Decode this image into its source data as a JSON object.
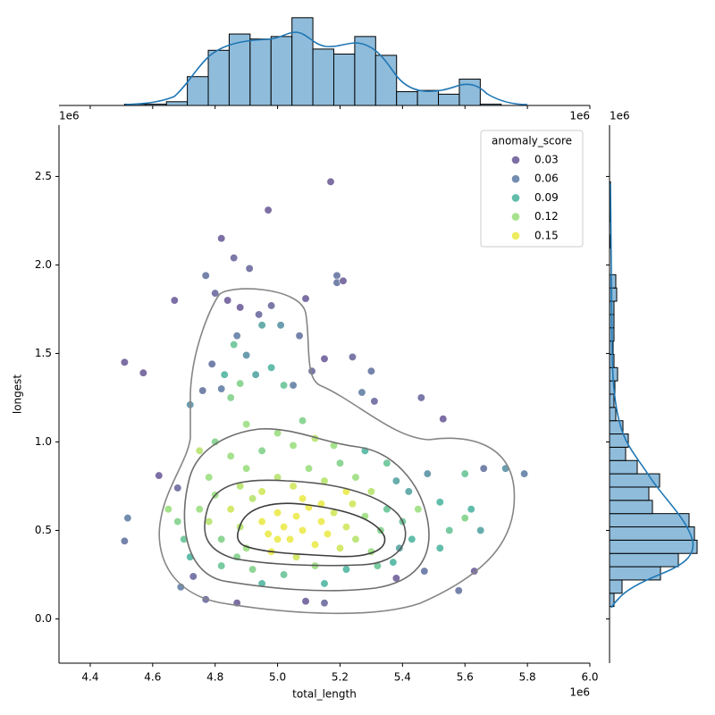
{
  "chart_data": {
    "type": "scatter",
    "x_label": "total_length",
    "y_label": "longest",
    "x_offset_label": "1e6",
    "y_offset_label": "1e6",
    "xlim": [
      4.3,
      6.0
    ],
    "ylim": [
      -0.25,
      2.79
    ],
    "xticks": [
      4.4,
      4.6,
      4.8,
      {
        "value": 5.0,
        "label": "5.0"
      },
      5.2,
      5.4,
      5.6,
      5.8,
      {
        "value": 6.0,
        "label": "6.0"
      }
    ],
    "yticks": [
      {
        "value": 0.0,
        "label": "0.0"
      },
      0.5,
      {
        "value": 1.0,
        "label": "1.0"
      },
      1.5,
      {
        "value": 2.0,
        "label": "2.0"
      },
      2.5
    ],
    "legend": {
      "title": "anomaly_score",
      "corner": "upper right",
      "entries": [
        {
          "value": 0.03,
          "color": "#46327e"
        },
        {
          "value": 0.06,
          "color": "#365c8d"
        },
        {
          "value": 0.09,
          "color": "#1fa187"
        },
        {
          "value": 0.12,
          "color": "#80d65c"
        },
        {
          "value": 0.15,
          "color": "#e5e419"
        }
      ]
    },
    "points": [
      [
        5.17,
        2.47,
        0.03
      ],
      [
        4.97,
        2.31,
        0.03
      ],
      [
        4.82,
        2.15,
        0.03
      ],
      [
        4.86,
        2.04,
        0.04
      ],
      [
        4.91,
        1.98,
        0.04
      ],
      [
        5.19,
        1.94,
        0.05
      ],
      [
        5.19,
        1.9,
        0.05
      ],
      [
        5.21,
        1.91,
        0.03
      ],
      [
        4.51,
        1.45,
        0.03
      ],
      [
        4.57,
        1.39,
        0.03
      ],
      [
        4.67,
        1.8,
        0.03
      ],
      [
        4.8,
        1.84,
        0.04
      ],
      [
        4.84,
        1.8,
        0.03
      ],
      [
        5.09,
        1.81,
        0.03
      ],
      [
        4.77,
        1.94,
        0.05
      ],
      [
        4.88,
        1.76,
        0.03
      ],
      [
        4.94,
        1.72,
        0.04
      ],
      [
        4.98,
        1.77,
        0.04
      ],
      [
        5.24,
        1.48,
        0.04
      ],
      [
        5.15,
        1.47,
        0.03
      ],
      [
        5.11,
        1.4,
        0.04
      ],
      [
        5.3,
        1.4,
        0.05
      ],
      [
        5.07,
        1.6,
        0.05
      ],
      [
        5.01,
        1.66,
        0.07
      ],
      [
        4.95,
        1.66,
        0.08
      ],
      [
        4.87,
        1.6,
        0.06
      ],
      [
        4.86,
        1.55,
        0.1
      ],
      [
        4.9,
        1.49,
        0.07
      ],
      [
        4.79,
        1.44,
        0.05
      ],
      [
        4.83,
        1.38,
        0.09
      ],
      [
        4.76,
        1.29,
        0.05
      ],
      [
        4.82,
        1.3,
        0.06
      ],
      [
        4.88,
        1.33,
        0.11
      ],
      [
        4.93,
        1.38,
        0.08
      ],
      [
        4.98,
        1.42,
        0.09
      ],
      [
        5.02,
        1.32,
        0.1
      ],
      [
        5.05,
        1.32,
        0.06
      ],
      [
        4.85,
        1.25,
        0.11
      ],
      [
        4.72,
        1.21,
        0.07
      ],
      [
        5.27,
        1.28,
        0.06
      ],
      [
        5.31,
        1.23,
        0.04
      ],
      [
        5.46,
        1.25,
        0.04
      ],
      [
        5.53,
        1.13,
        0.03
      ],
      [
        4.52,
        0.57,
        0.06
      ],
      [
        4.51,
        0.44,
        0.05
      ],
      [
        4.62,
        0.81,
        0.03
      ],
      [
        4.68,
        0.74,
        0.04
      ],
      [
        4.69,
        0.18,
        0.06
      ],
      [
        4.73,
        0.24,
        0.04
      ],
      [
        4.77,
        0.11,
        0.04
      ],
      [
        4.87,
        0.09,
        0.03
      ],
      [
        5.09,
        0.1,
        0.03
      ],
      [
        5.15,
        0.09,
        0.04
      ],
      [
        5.38,
        0.23,
        0.03
      ],
      [
        5.58,
        0.16,
        0.05
      ],
      [
        5.63,
        0.27,
        0.03
      ],
      [
        5.79,
        0.82,
        0.06
      ],
      [
        5.73,
        0.85,
        0.07
      ],
      [
        5.66,
        0.85,
        0.05
      ],
      [
        5.6,
        0.82,
        0.1
      ],
      [
        5.62,
        0.62,
        0.09
      ],
      [
        5.65,
        0.5,
        0.08
      ],
      [
        5.6,
        0.57,
        0.11
      ],
      [
        5.55,
        0.5,
        0.1
      ],
      [
        5.52,
        0.4,
        0.09
      ],
      [
        5.47,
        0.27,
        0.05
      ],
      [
        5.48,
        0.82,
        0.07
      ],
      [
        5.42,
        0.72,
        0.08
      ],
      [
        5.52,
        0.66,
        0.09
      ],
      [
        5.45,
        0.62,
        0.12
      ],
      [
        5.39,
        0.4,
        0.08
      ],
      [
        4.75,
        0.62,
        0.12
      ],
      [
        4.78,
        0.55,
        0.13
      ],
      [
        4.8,
        0.7,
        0.12
      ],
      [
        4.82,
        0.45,
        0.11
      ],
      [
        4.85,
        0.62,
        0.14
      ],
      [
        4.88,
        0.52,
        0.13
      ],
      [
        4.9,
        0.4,
        0.12
      ],
      [
        4.92,
        0.68,
        0.13
      ],
      [
        4.95,
        0.55,
        0.15
      ],
      [
        4.97,
        0.48,
        0.15
      ],
      [
        5.0,
        0.6,
        0.16
      ],
      [
        5.02,
        0.52,
        0.16
      ],
      [
        5.04,
        0.45,
        0.15
      ],
      [
        5.06,
        0.58,
        0.16
      ],
      [
        5.08,
        0.5,
        0.16
      ],
      [
        5.1,
        0.63,
        0.15
      ],
      [
        5.12,
        0.42,
        0.15
      ],
      [
        5.14,
        0.55,
        0.16
      ],
      [
        5.16,
        0.48,
        0.15
      ],
      [
        5.18,
        0.6,
        0.14
      ],
      [
        5.2,
        0.4,
        0.14
      ],
      [
        5.22,
        0.52,
        0.14
      ],
      [
        5.25,
        0.45,
        0.13
      ],
      [
        5.28,
        0.58,
        0.12
      ],
      [
        5.3,
        0.38,
        0.12
      ],
      [
        5.33,
        0.5,
        0.11
      ],
      [
        5.35,
        0.62,
        0.1
      ],
      [
        5.37,
        0.32,
        0.09
      ],
      [
        4.95,
        0.72,
        0.14
      ],
      [
        5.0,
        0.8,
        0.13
      ],
      [
        5.05,
        0.75,
        0.14
      ],
      [
        5.1,
        0.85,
        0.12
      ],
      [
        5.15,
        0.78,
        0.13
      ],
      [
        5.2,
        0.88,
        0.11
      ],
      [
        5.25,
        0.8,
        0.12
      ],
      [
        5.3,
        0.72,
        0.13
      ],
      [
        4.9,
        0.85,
        0.12
      ],
      [
        4.85,
        0.92,
        0.12
      ],
      [
        4.95,
        0.95,
        0.11
      ],
      [
        5.05,
        0.98,
        0.12
      ],
      [
        5.12,
        1.02,
        0.13
      ],
      [
        5.18,
        0.98,
        0.12
      ],
      [
        5.28,
        0.95,
        0.09
      ],
      [
        5.35,
        0.88,
        0.1
      ],
      [
        4.8,
        1.0,
        0.11
      ],
      [
        4.75,
        0.95,
        0.13
      ],
      [
        4.9,
        1.1,
        0.12
      ],
      [
        5.0,
        1.05,
        0.12
      ],
      [
        5.08,
        1.12,
        0.11
      ],
      [
        4.82,
        0.3,
        0.1
      ],
      [
        4.92,
        0.28,
        0.11
      ],
      [
        5.02,
        0.25,
        0.1
      ],
      [
        5.12,
        0.3,
        0.12
      ],
      [
        5.22,
        0.28,
        0.09
      ],
      [
        5.32,
        0.3,
        0.1
      ],
      [
        4.7,
        0.45,
        0.1
      ],
      [
        4.72,
        0.35,
        0.09
      ],
      [
        4.68,
        0.55,
        0.11
      ],
      [
        4.65,
        0.62,
        0.12
      ],
      [
        4.98,
        0.38,
        0.16
      ],
      [
        5.06,
        0.35,
        0.14
      ],
      [
        5.14,
        0.65,
        0.16
      ],
      [
        5.0,
        0.45,
        0.15
      ],
      [
        4.87,
        0.35,
        0.11
      ],
      [
        5.24,
        0.65,
        0.14
      ],
      [
        5.4,
        0.55,
        0.1
      ],
      [
        5.43,
        0.45,
        0.09
      ],
      [
        5.38,
        0.78,
        0.08
      ],
      [
        5.15,
        0.2,
        0.09
      ],
      [
        4.95,
        0.2,
        0.09
      ],
      [
        4.78,
        0.8,
        0.12
      ],
      [
        5.22,
        0.72,
        0.15
      ],
      [
        5.08,
        0.68,
        0.15
      ],
      [
        4.88,
        0.75,
        0.13
      ]
    ],
    "hist_color": "#8fbcdb",
    "x_hist": {
      "bins": [
        4.51,
        4.577,
        4.644,
        4.711,
        4.778,
        4.845,
        4.912,
        4.979,
        5.046,
        5.113,
        5.18,
        5.247,
        5.314,
        5.381,
        5.448,
        5.515,
        5.582,
        5.649,
        5.716,
        5.783
      ],
      "counts": [
        1,
        1,
        3,
        23,
        44,
        57,
        53,
        55,
        70,
        45,
        41,
        55,
        40,
        11,
        12,
        9,
        21,
        1,
        0
      ],
      "count_lim": [
        0,
        77
      ]
    },
    "y_hist": {
      "bins": [
        0.07,
        0.145,
        0.22,
        0.295,
        0.37,
        0.445,
        0.52,
        0.595,
        0.67,
        0.745,
        0.82,
        0.895,
        0.97,
        1.045,
        1.12,
        1.195,
        1.27,
        1.345,
        1.42,
        1.495,
        1.57,
        1.645,
        1.72,
        1.795,
        1.87,
        1.945,
        2.02,
        2.095,
        2.17,
        2.245,
        2.32,
        2.395,
        2.47
      ],
      "counts": [
        5,
        14,
        57,
        77,
        98,
        95,
        89,
        48,
        44,
        56,
        31,
        18,
        21,
        15,
        7,
        5,
        6,
        9,
        5,
        4,
        5,
        5,
        5,
        8,
        7,
        0,
        0,
        1,
        0,
        1,
        0,
        1
      ],
      "count_lim": [
        0,
        118
      ]
    }
  }
}
